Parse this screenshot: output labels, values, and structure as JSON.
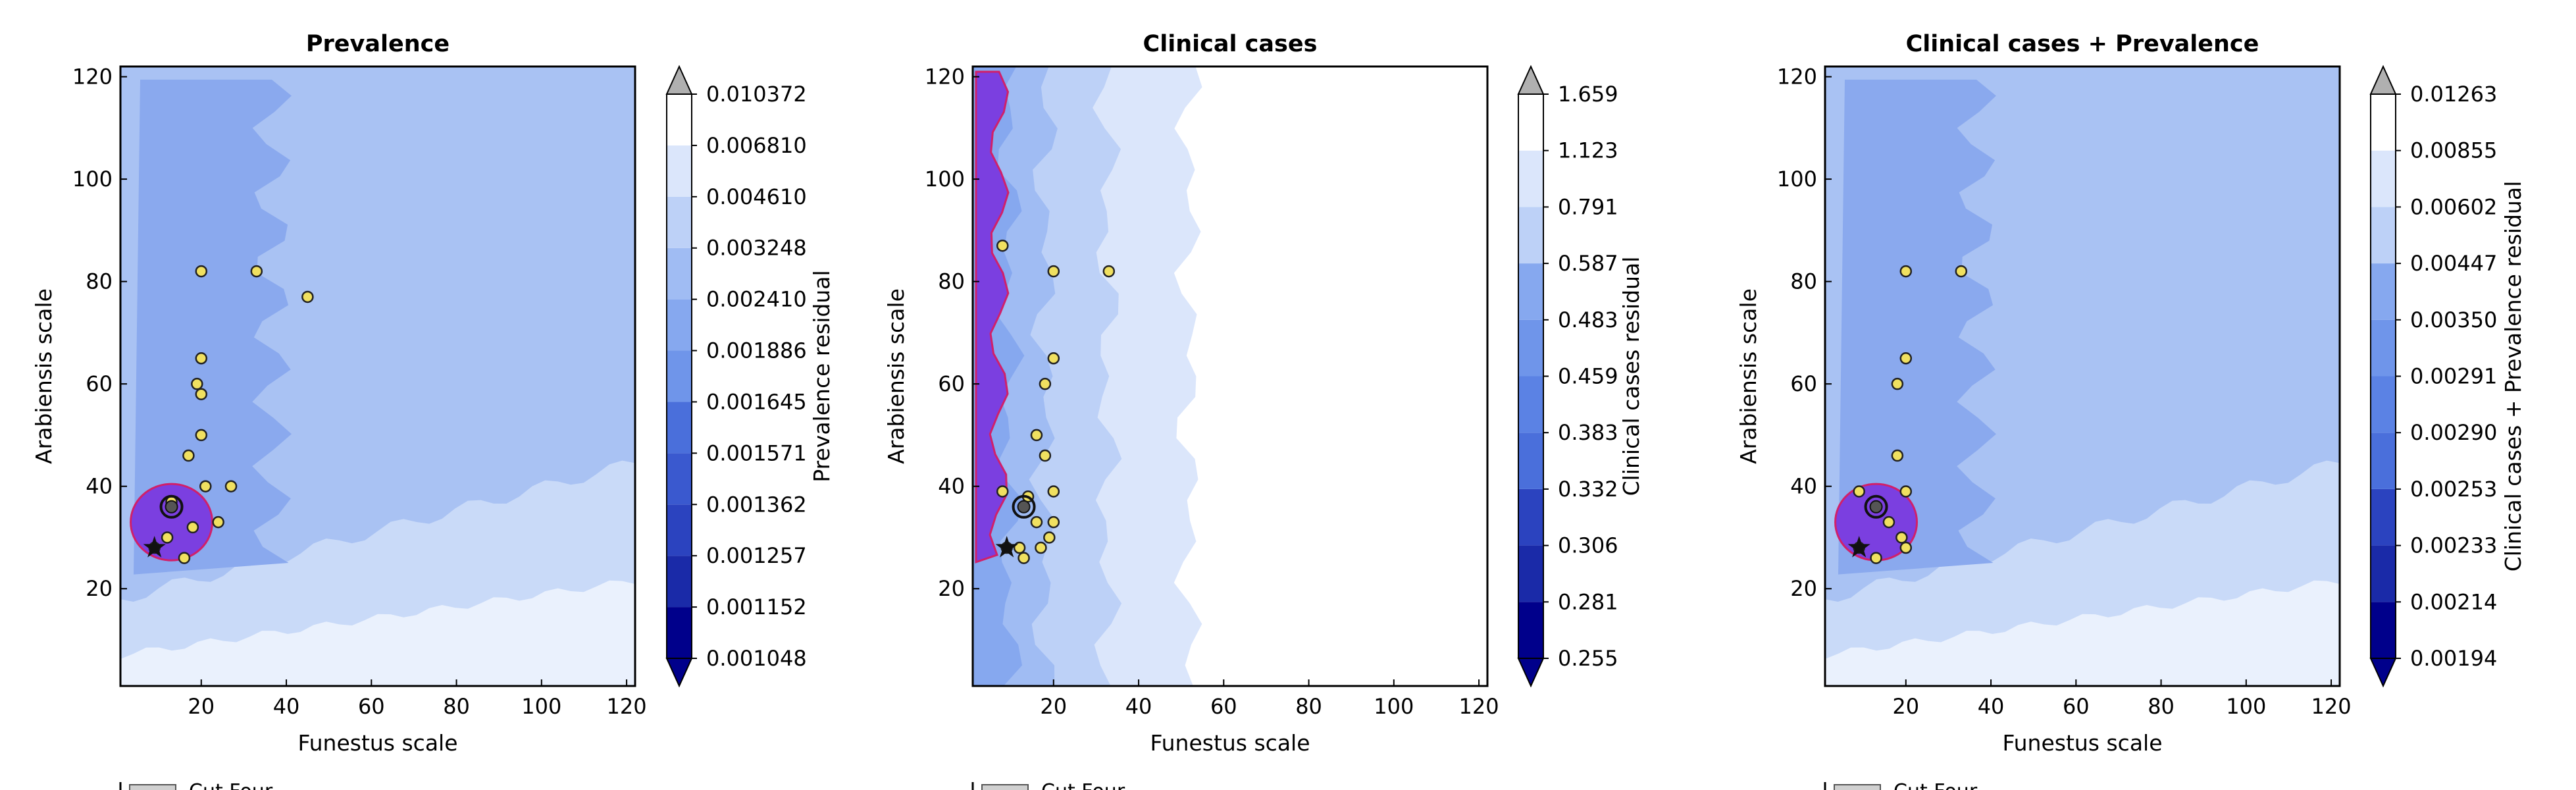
{
  "chart_data": [
    {
      "type": "heatmap",
      "title": "Prevalence",
      "xlabel": "Funestus scale",
      "ylabel": "Arabiensis scale",
      "xlim": [
        1,
        122
      ],
      "ylim": [
        1,
        122
      ],
      "x_ticks": [
        20,
        40,
        60,
        80,
        100,
        120
      ],
      "y_ticks": [
        20,
        40,
        60,
        80,
        100,
        120
      ],
      "colorbar": {
        "label": "Prevalence residual",
        "levels": [
          "0.001048",
          "0.001152",
          "0.001257",
          "0.001362",
          "0.001571",
          "0.001645",
          "0.001886",
          "0.002410",
          "0.003248",
          "0.004610",
          "0.006810",
          "0.010372"
        ],
        "extend": "both"
      },
      "hotspots": [
        [
          20,
          82
        ],
        [
          33,
          82
        ],
        [
          45,
          77
        ],
        [
          20,
          65
        ],
        [
          19,
          60
        ],
        [
          20,
          58
        ],
        [
          20,
          50
        ],
        [
          17,
          46
        ],
        [
          21,
          40
        ],
        [
          27,
          40
        ],
        [
          24,
          33
        ],
        [
          18,
          32
        ],
        [
          13,
          37
        ],
        [
          12,
          30
        ],
        [
          16,
          26
        ],
        [
          9,
          28
        ]
      ],
      "highlight": {
        "x": 13,
        "y": 36
      },
      "best_fit": {
        "x": 9,
        "y": 28
      },
      "legend_partial": "Cut Four..."
    },
    {
      "type": "heatmap",
      "title": "Clinical cases",
      "xlabel": "Funestus scale",
      "ylabel": "Arabiensis scale",
      "xlim": [
        1,
        122
      ],
      "ylim": [
        1,
        122
      ],
      "x_ticks": [
        20,
        40,
        60,
        80,
        100,
        120
      ],
      "y_ticks": [
        20,
        40,
        60,
        80,
        100,
        120
      ],
      "colorbar": {
        "label": "Clinical cases residual",
        "levels": [
          "0.255",
          "0.281",
          "0.306",
          "0.332",
          "0.383",
          "0.459",
          "0.483",
          "0.587",
          "0.791",
          "1.123",
          "1.659"
        ],
        "extend": "both"
      },
      "hotspots": [
        [
          20,
          82
        ],
        [
          33,
          82
        ],
        [
          20,
          65
        ],
        [
          18,
          60
        ],
        [
          16,
          50
        ],
        [
          18,
          46
        ],
        [
          8,
          39
        ],
        [
          14,
          38
        ],
        [
          20,
          39
        ],
        [
          16,
          33
        ],
        [
          20,
          33
        ],
        [
          19,
          30
        ],
        [
          12,
          28
        ],
        [
          13,
          26
        ],
        [
          17,
          28
        ],
        [
          9,
          28
        ],
        [
          8,
          87
        ]
      ],
      "highlight": {
        "x": 13,
        "y": 36
      },
      "best_fit": {
        "x": 9,
        "y": 28
      },
      "legend_partial": "Cut Four..."
    },
    {
      "type": "heatmap",
      "title": "Clinical cases + Prevalence",
      "xlabel": "Funestus scale",
      "ylabel": "Arabiensis scale",
      "xlim": [
        1,
        122
      ],
      "ylim": [
        1,
        122
      ],
      "x_ticks": [
        20,
        40,
        60,
        80,
        100,
        120
      ],
      "y_ticks": [
        20,
        40,
        60,
        80,
        100,
        120
      ],
      "colorbar": {
        "label": "Clinical cases + Prevalence residual",
        "levels": [
          "0.00194",
          "0.00214",
          "0.00233",
          "0.00253",
          "0.00290",
          "0.00291",
          "0.00350",
          "0.00447",
          "0.00602",
          "0.00855",
          "0.01263"
        ],
        "extend": "both"
      },
      "hotspots": [
        [
          20,
          82
        ],
        [
          33,
          82
        ],
        [
          20,
          65
        ],
        [
          18,
          60
        ],
        [
          18,
          46
        ],
        [
          9,
          39
        ],
        [
          20,
          39
        ],
        [
          16,
          33
        ],
        [
          19,
          30
        ],
        [
          20,
          28
        ],
        [
          9,
          28
        ],
        [
          13,
          26
        ]
      ],
      "highlight": {
        "x": 13,
        "y": 36
      },
      "best_fit": {
        "x": 9,
        "y": 28
      },
      "legend_partial": "Cut Four..."
    }
  ]
}
